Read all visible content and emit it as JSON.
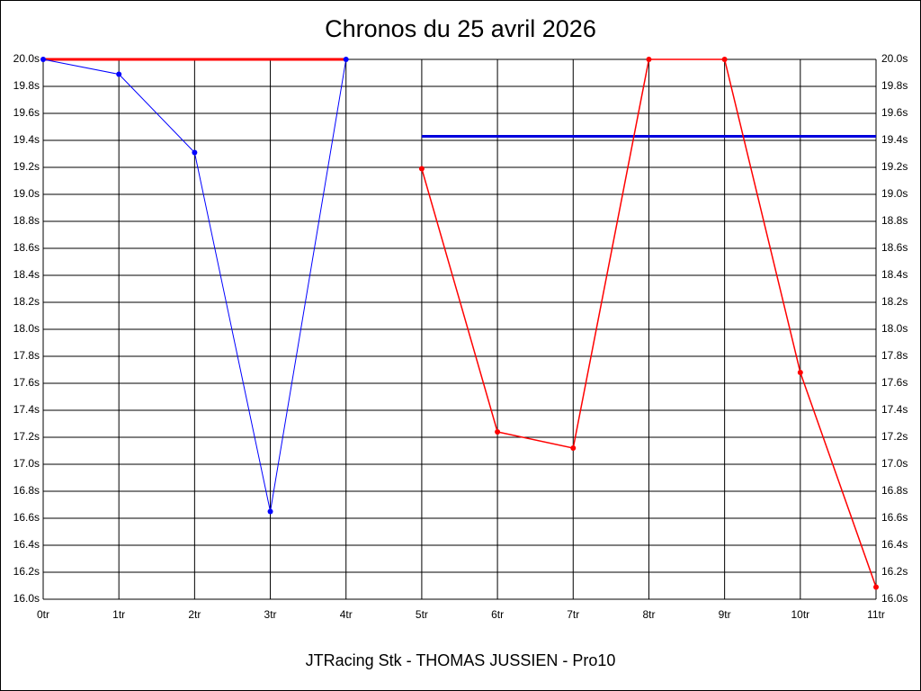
{
  "chart_data": {
    "type": "line",
    "title": "Chronos du 25 avril 2026",
    "x_label": "JTRacing Stk - THOMAS JUSSIEN - Pro10",
    "xlim": [
      0,
      11
    ],
    "xticks": [
      {
        "value": 0,
        "label": "0tr"
      },
      {
        "value": 1,
        "label": "1tr"
      },
      {
        "value": 2,
        "label": "2tr"
      },
      {
        "value": 3,
        "label": "3tr"
      },
      {
        "value": 4,
        "label": "4tr"
      },
      {
        "value": 5,
        "label": "5tr"
      },
      {
        "value": 6,
        "label": "6tr"
      },
      {
        "value": 7,
        "label": "7tr"
      },
      {
        "value": 8,
        "label": "8tr"
      },
      {
        "value": 9,
        "label": "9tr"
      },
      {
        "value": 10,
        "label": "10tr"
      },
      {
        "value": 11,
        "label": "11tr"
      }
    ],
    "ylim": [
      16.0,
      20.0
    ],
    "yticks": [
      {
        "value": 16.0,
        "label": "16.0s"
      },
      {
        "value": 16.2,
        "label": "16.2s"
      },
      {
        "value": 16.4,
        "label": "16.4s"
      },
      {
        "value": 16.6,
        "label": "16.6s"
      },
      {
        "value": 16.8,
        "label": "16.8s"
      },
      {
        "value": 17.0,
        "label": "17.0s"
      },
      {
        "value": 17.2,
        "label": "17.2s"
      },
      {
        "value": 17.4,
        "label": "17.4s"
      },
      {
        "value": 17.6,
        "label": "17.6s"
      },
      {
        "value": 17.8,
        "label": "17.8s"
      },
      {
        "value": 18.0,
        "label": "18.0s"
      },
      {
        "value": 18.2,
        "label": "18.2s"
      },
      {
        "value": 18.4,
        "label": "18.4s"
      },
      {
        "value": 18.6,
        "label": "18.6s"
      },
      {
        "value": 18.8,
        "label": "18.8s"
      },
      {
        "value": 19.0,
        "label": "19.0s"
      },
      {
        "value": 19.2,
        "label": "19.2s"
      },
      {
        "value": 19.4,
        "label": "19.4s"
      },
      {
        "value": 19.6,
        "label": "19.6s"
      },
      {
        "value": 19.8,
        "label": "19.8s"
      },
      {
        "value": 20.0,
        "label": "20.0s"
      }
    ],
    "grid": true,
    "series": [
      {
        "color": "#ff0000",
        "x": [
          0,
          4
        ],
        "values": [
          20.0,
          20.0
        ],
        "markers": false,
        "width": 3
      },
      {
        "color": "#0000dd",
        "x": [
          5,
          11
        ],
        "values": [
          19.43,
          19.43
        ],
        "markers": false,
        "width": 3
      },
      {
        "color": "#0000ff",
        "x": [
          0,
          1,
          2,
          3,
          4
        ],
        "values": [
          20.0,
          19.89,
          19.31,
          16.65,
          20.0
        ],
        "markers": true,
        "width": 1
      },
      {
        "color": "#ff0000",
        "x": [
          5,
          6,
          7,
          8,
          9,
          10,
          11
        ],
        "values": [
          19.19,
          17.24,
          17.12,
          20.0,
          20.0,
          17.68,
          16.09
        ],
        "markers": true,
        "width": 1.5
      }
    ]
  }
}
